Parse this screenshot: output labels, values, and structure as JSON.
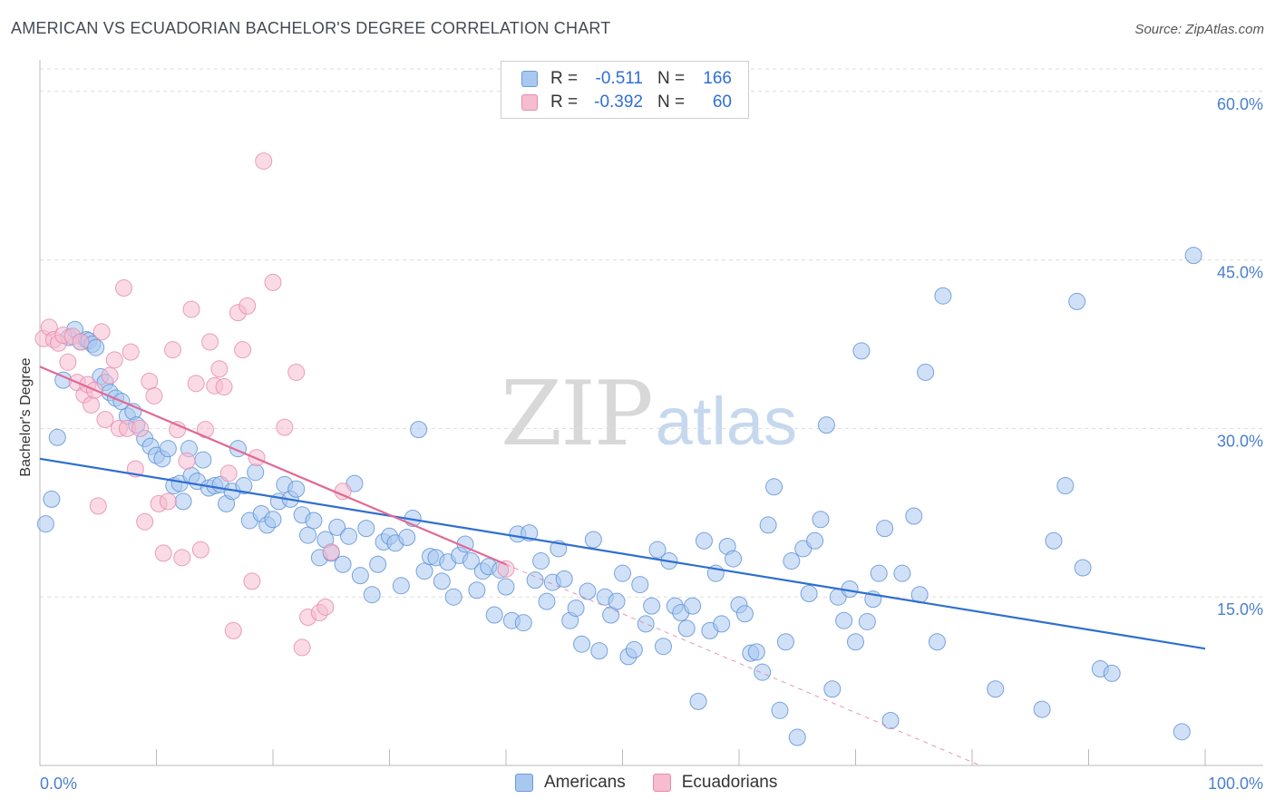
{
  "header": {
    "title": "AMERICAN VS ECUADORIAN BACHELOR'S DEGREE CORRELATION CHART",
    "source": "Source: ZipAtlas.com"
  },
  "watermark": {
    "zip": "ZIP",
    "atlas": "atlas"
  },
  "legend": {
    "rows": [
      {
        "r_label": "R =",
        "r_value": "-0.511",
        "n_label": "N =",
        "n_value": "166",
        "color": "#a9c8f0",
        "border": "#6a9ad8"
      },
      {
        "r_label": "R =",
        "r_value": "-0.392",
        "n_label": "N =",
        "n_value": "60",
        "color": "#f6bcd0",
        "border": "#e88aab"
      }
    ]
  },
  "bottom_legend": {
    "americans": "Americans",
    "ecuadorians": "Ecuadorians"
  },
  "colors": {
    "americans_fill": "#a9c8f0",
    "americans_stroke": "#5a8fd6",
    "americans_line": "#2e6fd0",
    "ecuadorians_fill": "#f6bcd0",
    "ecuadorians_stroke": "#e58aab",
    "ecuadorians_line": "#e06a94",
    "grid": "#dddddd",
    "tick_text": "#4a7fcf"
  },
  "chart_data": {
    "type": "scatter",
    "title": "AMERICAN VS ECUADORIAN BACHELOR'S DEGREE CORRELATION CHART",
    "xlabel": "",
    "ylabel": "Bachelor's Degree",
    "xlim": [
      0,
      100
    ],
    "ylim": [
      0,
      62
    ],
    "x_tick_labels": {
      "min": "0.0%",
      "max": "100.0%"
    },
    "y_ticks": [
      15,
      30,
      45,
      60
    ],
    "y_tick_labels": [
      "15.0%",
      "30.0%",
      "45.0%",
      "60.0%"
    ],
    "grid": true,
    "legend_position": "top-center",
    "series": [
      {
        "name": "Americans",
        "trend": {
          "x": [
            0,
            100
          ],
          "y": [
            27.3,
            10.4
          ]
        },
        "points": [
          [
            0.5,
            21.5
          ],
          [
            1,
            23.7
          ],
          [
            1.5,
            29.2
          ],
          [
            2,
            34.3
          ],
          [
            2.5,
            38.1
          ],
          [
            3,
            38.8
          ],
          [
            3.5,
            37.7
          ],
          [
            4,
            37.9
          ],
          [
            4.2,
            37.8
          ],
          [
            4.5,
            37.5
          ],
          [
            4.8,
            37.2
          ],
          [
            5.2,
            34.6
          ],
          [
            5.6,
            34.1
          ],
          [
            6,
            33.2
          ],
          [
            6.5,
            32.7
          ],
          [
            7,
            32.4
          ],
          [
            7.5,
            31.1
          ],
          [
            8,
            31.5
          ],
          [
            8.3,
            30.3
          ],
          [
            9,
            29.1
          ],
          [
            9.5,
            28.4
          ],
          [
            10,
            27.6
          ],
          [
            10.5,
            27.3
          ],
          [
            11,
            28.2
          ],
          [
            11.5,
            24.9
          ],
          [
            12,
            25.1
          ],
          [
            12.3,
            23.5
          ],
          [
            12.8,
            28.2
          ],
          [
            13,
            25.8
          ],
          [
            13.5,
            25.3
          ],
          [
            14,
            27.2
          ],
          [
            14.5,
            24.7
          ],
          [
            15,
            24.9
          ],
          [
            15.5,
            25.0
          ],
          [
            16,
            23.3
          ],
          [
            16.5,
            24.4
          ],
          [
            17,
            28.2
          ],
          [
            17.5,
            24.9
          ],
          [
            18,
            21.8
          ],
          [
            18.5,
            26.1
          ],
          [
            19,
            22.4
          ],
          [
            19.5,
            21.4
          ],
          [
            20,
            21.9
          ],
          [
            20.5,
            23.5
          ],
          [
            21,
            25.0
          ],
          [
            21.5,
            23.7
          ],
          [
            22,
            24.6
          ],
          [
            22.5,
            22.3
          ],
          [
            23,
            20.5
          ],
          [
            23.5,
            21.8
          ],
          [
            24,
            18.5
          ],
          [
            24.5,
            20.1
          ],
          [
            25,
            18.9
          ],
          [
            25.5,
            21.2
          ],
          [
            26,
            17.9
          ],
          [
            26.5,
            20.4
          ],
          [
            27,
            25.1
          ],
          [
            27.5,
            16.9
          ],
          [
            28,
            21.1
          ],
          [
            28.5,
            15.2
          ],
          [
            29,
            17.9
          ],
          [
            29.5,
            19.9
          ],
          [
            30,
            20.4
          ],
          [
            30.5,
            19.8
          ],
          [
            31,
            16.0
          ],
          [
            31.5,
            20.3
          ],
          [
            32,
            22.0
          ],
          [
            32.5,
            29.9
          ],
          [
            33,
            17.3
          ],
          [
            33.5,
            18.6
          ],
          [
            34,
            18.5
          ],
          [
            34.5,
            16.4
          ],
          [
            35,
            18.1
          ],
          [
            35.5,
            15.0
          ],
          [
            36,
            18.7
          ],
          [
            36.5,
            19.7
          ],
          [
            37,
            18.2
          ],
          [
            37.5,
            15.6
          ],
          [
            38,
            17.3
          ],
          [
            38.5,
            17.7
          ],
          [
            39,
            13.4
          ],
          [
            39.5,
            17.4
          ],
          [
            40,
            15.9
          ],
          [
            40.5,
            12.9
          ],
          [
            41,
            20.6
          ],
          [
            41.5,
            12.7
          ],
          [
            42,
            20.7
          ],
          [
            42.5,
            16.5
          ],
          [
            43,
            18.2
          ],
          [
            43.5,
            14.6
          ],
          [
            44,
            16.3
          ],
          [
            44.5,
            19.3
          ],
          [
            45,
            16.6
          ],
          [
            45.5,
            12.9
          ],
          [
            46,
            14.0
          ],
          [
            46.5,
            10.8
          ],
          [
            47,
            15.5
          ],
          [
            47.5,
            20.1
          ],
          [
            48,
            10.2
          ],
          [
            48.5,
            15.0
          ],
          [
            49,
            13.4
          ],
          [
            49.5,
            14.6
          ],
          [
            50,
            17.1
          ],
          [
            50.5,
            9.7
          ],
          [
            51,
            10.3
          ],
          [
            51.5,
            16.1
          ],
          [
            52,
            12.6
          ],
          [
            52.5,
            14.2
          ],
          [
            53,
            19.2
          ],
          [
            53.5,
            10.6
          ],
          [
            54,
            18.2
          ],
          [
            54.5,
            14.2
          ],
          [
            55,
            13.6
          ],
          [
            55.5,
            12.2
          ],
          [
            56,
            14.2
          ],
          [
            56.5,
            5.7
          ],
          [
            57,
            20.0
          ],
          [
            57.5,
            12.0
          ],
          [
            58,
            17.1
          ],
          [
            58.5,
            12.6
          ],
          [
            59,
            19.5
          ],
          [
            59.5,
            18.4
          ],
          [
            60,
            14.3
          ],
          [
            60.5,
            13.5
          ],
          [
            61,
            10.0
          ],
          [
            61.5,
            10.1
          ],
          [
            62,
            8.3
          ],
          [
            62.5,
            21.4
          ],
          [
            63,
            24.8
          ],
          [
            63.5,
            4.9
          ],
          [
            64,
            11.0
          ],
          [
            64.5,
            18.2
          ],
          [
            65,
            2.5
          ],
          [
            65.5,
            19.3
          ],
          [
            66,
            15.3
          ],
          [
            66.5,
            20.0
          ],
          [
            67,
            21.9
          ],
          [
            67.5,
            30.3
          ],
          [
            68,
            6.8
          ],
          [
            68.5,
            15.0
          ],
          [
            69,
            12.9
          ],
          [
            69.5,
            15.7
          ],
          [
            70,
            11.0
          ],
          [
            70.5,
            36.9
          ],
          [
            71,
            12.8
          ],
          [
            71.5,
            14.8
          ],
          [
            72,
            17.1
          ],
          [
            72.5,
            21.1
          ],
          [
            73,
            4.0
          ],
          [
            74,
            17.1
          ],
          [
            75,
            22.2
          ],
          [
            75.5,
            15.2
          ],
          [
            76,
            35.0
          ],
          [
            77,
            11.0
          ],
          [
            77.5,
            41.8
          ],
          [
            82,
            6.8
          ],
          [
            86,
            5.0
          ],
          [
            87,
            20.0
          ],
          [
            88,
            24.9
          ],
          [
            89,
            41.3
          ],
          [
            89.5,
            17.6
          ],
          [
            91,
            8.6
          ],
          [
            92,
            8.2
          ],
          [
            98,
            3.0
          ],
          [
            99,
            45.4
          ]
        ]
      },
      {
        "name": "Ecuadorians",
        "trend": {
          "x": [
            0,
            40
          ],
          "y": [
            35.5,
            17.9
          ]
        },
        "points": [
          [
            0.3,
            38.0
          ],
          [
            0.8,
            39.0
          ],
          [
            1.2,
            37.9
          ],
          [
            1.6,
            37.6
          ],
          [
            2,
            38.3
          ],
          [
            2.4,
            35.9
          ],
          [
            2.8,
            38.2
          ],
          [
            3.2,
            34.1
          ],
          [
            3.5,
            37.7
          ],
          [
            3.8,
            33.0
          ],
          [
            4.1,
            33.9
          ],
          [
            4.4,
            32.1
          ],
          [
            4.7,
            33.4
          ],
          [
            5,
            23.1
          ],
          [
            5.3,
            38.6
          ],
          [
            5.6,
            30.8
          ],
          [
            6,
            34.7
          ],
          [
            6.4,
            36.1
          ],
          [
            6.8,
            30.0
          ],
          [
            7.2,
            42.5
          ],
          [
            7.5,
            30.0
          ],
          [
            7.8,
            36.8
          ],
          [
            8.2,
            26.4
          ],
          [
            8.6,
            30.0
          ],
          [
            9,
            21.7
          ],
          [
            9.4,
            34.2
          ],
          [
            9.8,
            32.9
          ],
          [
            10.2,
            23.3
          ],
          [
            10.6,
            18.9
          ],
          [
            11,
            23.5
          ],
          [
            11.4,
            37.0
          ],
          [
            11.8,
            29.9
          ],
          [
            12.2,
            18.5
          ],
          [
            12.6,
            27.1
          ],
          [
            13,
            40.6
          ],
          [
            13.4,
            34.0
          ],
          [
            13.8,
            19.2
          ],
          [
            14.2,
            29.9
          ],
          [
            14.6,
            37.7
          ],
          [
            15,
            33.8
          ],
          [
            15.4,
            35.3
          ],
          [
            15.8,
            33.7
          ],
          [
            16.2,
            26.0
          ],
          [
            16.6,
            12.0
          ],
          [
            17,
            40.3
          ],
          [
            17.4,
            37.0
          ],
          [
            17.8,
            40.9
          ],
          [
            18.2,
            16.4
          ],
          [
            18.6,
            27.4
          ],
          [
            19.2,
            53.8
          ],
          [
            20,
            43.0
          ],
          [
            21,
            30.1
          ],
          [
            22,
            35.0
          ],
          [
            22.5,
            10.5
          ],
          [
            23,
            13.2
          ],
          [
            24,
            13.6
          ],
          [
            24.5,
            14.1
          ],
          [
            25,
            19.0
          ],
          [
            26,
            24.4
          ],
          [
            40,
            17.5
          ]
        ]
      }
    ]
  }
}
